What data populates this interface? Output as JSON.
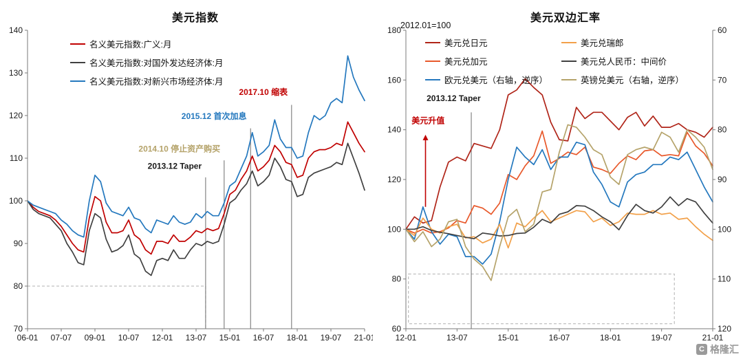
{
  "page": {
    "background": "#ffffff"
  },
  "watermark": {
    "text": "格隆汇",
    "logo_icon": "gelonghui-logo"
  },
  "chart_data": [
    {
      "type": "line",
      "title": "美元指数",
      "x_start": "2006-01",
      "x_step_months": 3,
      "x_tick_every": 6,
      "x_tick_labels": [
        "06-01",
        "07-07",
        "09-01",
        "10-07",
        "12-01",
        "13-07",
        "15-01",
        "16-07",
        "18-01",
        "19-07",
        "21-01"
      ],
      "ylim": [
        70,
        140
      ],
      "y_ticks": [
        70,
        80,
        90,
        100,
        110,
        120,
        130,
        140
      ],
      "grid": false,
      "legend_position": "top-left",
      "series": [
        {
          "id": "usd-broad",
          "name": "名义美元指数:广义:月",
          "color": "#C00000",
          "axis": "left",
          "values": [
            100,
            98.5,
            97.5,
            97,
            96.5,
            95.5,
            94,
            92,
            90,
            88.5,
            88,
            96,
            101,
            100,
            95,
            92.5,
            92.5,
            93,
            95.5,
            92,
            91,
            88.5,
            87.5,
            90.5,
            90.5,
            90,
            92,
            90.5,
            90.5,
            91.5,
            93,
            92.5,
            93.5,
            93,
            93.5,
            97,
            101.5,
            102.5,
            105,
            107,
            110.5,
            107,
            108,
            109.5,
            113,
            111.5,
            109,
            108.5,
            105.5,
            106,
            110,
            111.5,
            112,
            112,
            112.5,
            113.5,
            113,
            118.5,
            116,
            113.5,
            111.5
          ]
        },
        {
          "id": "usd-adv",
          "name": "名义美元指数:对国外发达经济体:月",
          "color": "#404040",
          "axis": "left",
          "values": [
            100,
            98,
            97,
            96.5,
            96,
            94.5,
            93,
            90,
            88,
            85.5,
            85,
            93,
            97,
            96,
            91,
            88,
            88.5,
            89.5,
            92,
            87.5,
            86.5,
            83.5,
            82.5,
            86,
            86.5,
            86,
            88.5,
            86.5,
            86.5,
            88.5,
            90,
            89.5,
            90.5,
            90,
            90.5,
            94.5,
            99.5,
            100.5,
            102.5,
            104,
            107,
            103.5,
            104.5,
            106,
            110,
            108,
            105,
            104.5,
            101,
            101.5,
            105.5,
            106.5,
            107,
            107.5,
            108,
            109,
            108.5,
            113.5,
            110,
            106.5,
            102.5
          ]
        },
        {
          "id": "usd-em",
          "name": "名义美元指数:对新兴市场经济体:月",
          "color": "#2478BE",
          "axis": "left",
          "values": [
            100,
            99,
            98.5,
            98,
            97.5,
            97,
            95.5,
            94.5,
            93,
            92,
            91.5,
            100,
            106,
            104.5,
            99.5,
            97.5,
            97,
            96.5,
            98.5,
            96,
            95.5,
            93.5,
            92.5,
            95.5,
            95,
            94.5,
            96.5,
            95,
            94.5,
            95,
            97,
            96,
            97.5,
            96.5,
            96.5,
            99.5,
            103.5,
            104.5,
            107.5,
            110.5,
            116,
            110.5,
            111.5,
            113,
            119,
            114.5,
            112.5,
            112.5,
            110,
            110.5,
            116,
            120,
            119,
            120,
            123,
            124,
            123,
            134,
            129,
            126,
            123.5
          ]
        }
      ],
      "annotations": [
        {
          "text": "2013.12 Taper",
          "color": "#1a1a1a",
          "x": 31.7,
          "line_top": 105.5,
          "text_x": 31,
          "text_y": 107.5,
          "anchor": "end"
        },
        {
          "text": "2014.10 停止资产购买",
          "color": "#B5A36A",
          "x": 35,
          "line_top": 109.5,
          "text_x": 34.3,
          "text_y": 111.5,
          "anchor": "end"
        },
        {
          "text": "2015.12 首次加息",
          "color": "#2478BE",
          "x": 39.7,
          "line_top": 117,
          "text_x": 39,
          "text_y": 119.2,
          "anchor": "end"
        },
        {
          "text": "2017.10 缩表",
          "color": "#C00000",
          "x": 47,
          "line_top": 122.5,
          "text_x": 46.3,
          "text_y": 124.8,
          "anchor": "end"
        }
      ],
      "dashed_box": {
        "x0": 0,
        "x1": 31.7,
        "y0": 70,
        "y1": 80
      }
    },
    {
      "type": "line",
      "title": "美元双边汇率",
      "subtitle": "2012.01=100",
      "x_start": "2012-01",
      "x_step_months": 3,
      "x_tick_every": 6,
      "x_tick_labels": [
        "12-01",
        "13-07",
        "15-01",
        "16-07",
        "18-01",
        "19-07",
        "21-01"
      ],
      "ylim_left": [
        60,
        180
      ],
      "y_ticks_left": [
        60,
        80,
        100,
        120,
        140,
        160,
        180
      ],
      "ylim_right": [
        60,
        120
      ],
      "y_ticks_right": [
        60,
        70,
        80,
        90,
        100,
        110,
        120
      ],
      "right_axis_inverted": true,
      "grid": false,
      "legend_position": "top",
      "series": [
        {
          "id": "usd-jpy",
          "name": "美元兑日元",
          "color": "#B02418",
          "axis": "left",
          "legend_col": 1,
          "values": [
            100,
            105,
            102.5,
            103.5,
            117,
            127,
            129,
            127.5,
            134.5,
            133.5,
            132.5,
            140,
            154,
            156,
            160.5,
            157,
            154,
            143,
            136,
            135.5,
            149,
            144.5,
            147,
            147,
            143.5,
            140,
            145,
            147,
            141.5,
            145.5,
            141,
            141,
            142.5,
            140,
            139,
            137,
            141
          ]
        },
        {
          "id": "usd-cad",
          "name": "美元兑加元",
          "color": "#E8582A",
          "axis": "left",
          "legend_col": 1,
          "values": [
            100,
            98.5,
            100,
            98.5,
            99,
            100.5,
            103.5,
            102.5,
            109.5,
            108.5,
            106,
            110.5,
            122,
            120,
            125.5,
            129.5,
            139.5,
            126.5,
            128.5,
            131,
            130,
            133,
            125,
            124,
            122.5,
            126.5,
            129.5,
            128,
            131.5,
            132,
            129.5,
            130,
            129.5,
            139,
            133.5,
            130.5,
            125.5
          ]
        },
        {
          "id": "eur-usd",
          "name": "欧元兑美元（右轴，逆序）",
          "color": "#2478BE",
          "axis": "right",
          "legend_col": 1,
          "values": [
            100,
            102,
            95.5,
            100.5,
            103,
            101,
            101.5,
            105.5,
            105.5,
            107,
            105,
            98.5,
            90,
            83.5,
            85.5,
            87,
            84,
            88,
            85.5,
            85.5,
            82.5,
            83,
            88.5,
            91,
            94.5,
            95.5,
            90.5,
            89,
            88.5,
            87,
            87,
            85.5,
            86,
            84.5,
            88,
            91.5,
            94.5
          ]
        },
        {
          "id": "usd-chf",
          "name": "美元兑瑞郎",
          "color": "#F2A049",
          "axis": "left",
          "legend_col": 2,
          "values": [
            100,
            97.5,
            104.5,
            100,
            98.5,
            101,
            102,
            96.5,
            97,
            94.5,
            96,
            102,
            92.5,
            102.5,
            101,
            104.5,
            107.5,
            103,
            104.5,
            106,
            107.5,
            107,
            103,
            104.5,
            101.5,
            103,
            106.5,
            106,
            106,
            107.5,
            106,
            106.5,
            104,
            104.5,
            101,
            98,
            95.5
          ]
        },
        {
          "id": "usd-cny",
          "name": "美元兑人民币：中间价",
          "color": "#404040",
          "axis": "left",
          "legend_col": 2,
          "values": [
            100,
            100,
            101,
            99.5,
            98.8,
            98.2,
            97.5,
            96.8,
            96.2,
            98.5,
            98,
            97.3,
            97.5,
            98.3,
            98.5,
            100.8,
            104,
            102.5,
            106,
            107,
            109.5,
            109.3,
            107.5,
            105,
            103,
            99.8,
            105.5,
            110,
            107.5,
            106.5,
            109,
            113,
            109.5,
            112.3,
            111,
            106.5,
            102.5
          ]
        },
        {
          "id": "gbp-usd",
          "name": "英镑兑美元（右轴，逆序）",
          "color": "#B5A36A",
          "axis": "right",
          "legend_col": 2,
          "values": [
            100,
            102.5,
            100.5,
            103.5,
            102,
            98.5,
            98,
            103.5,
            106,
            107.5,
            110.3,
            103.5,
            97.5,
            96,
            100.5,
            99,
            92.5,
            92,
            84.5,
            79,
            79.5,
            81.5,
            84,
            85,
            89.5,
            91,
            85,
            84,
            83.5,
            84,
            80.5,
            81.5,
            84.5,
            80,
            81.5,
            83.5,
            88
          ]
        }
      ],
      "annotations": [
        {
          "text": "2013.12 Taper",
          "color": "#1a1a1a",
          "x": 7.67,
          "line_top": 147,
          "text_x": 5.6,
          "text_y": 151.5,
          "anchor": "middle"
        },
        {
          "text": "美元升值",
          "color": "#C00000",
          "text_x": 2.6,
          "text_y": 142.5,
          "anchor": "middle"
        }
      ],
      "arrow": {
        "x": 2.3,
        "y_from": 109,
        "y_to": 138,
        "color": "#C00000"
      },
      "dashed_box": {
        "x0": 0.3,
        "x1": 31.5,
        "y0": 62,
        "y1": 82
      }
    }
  ]
}
